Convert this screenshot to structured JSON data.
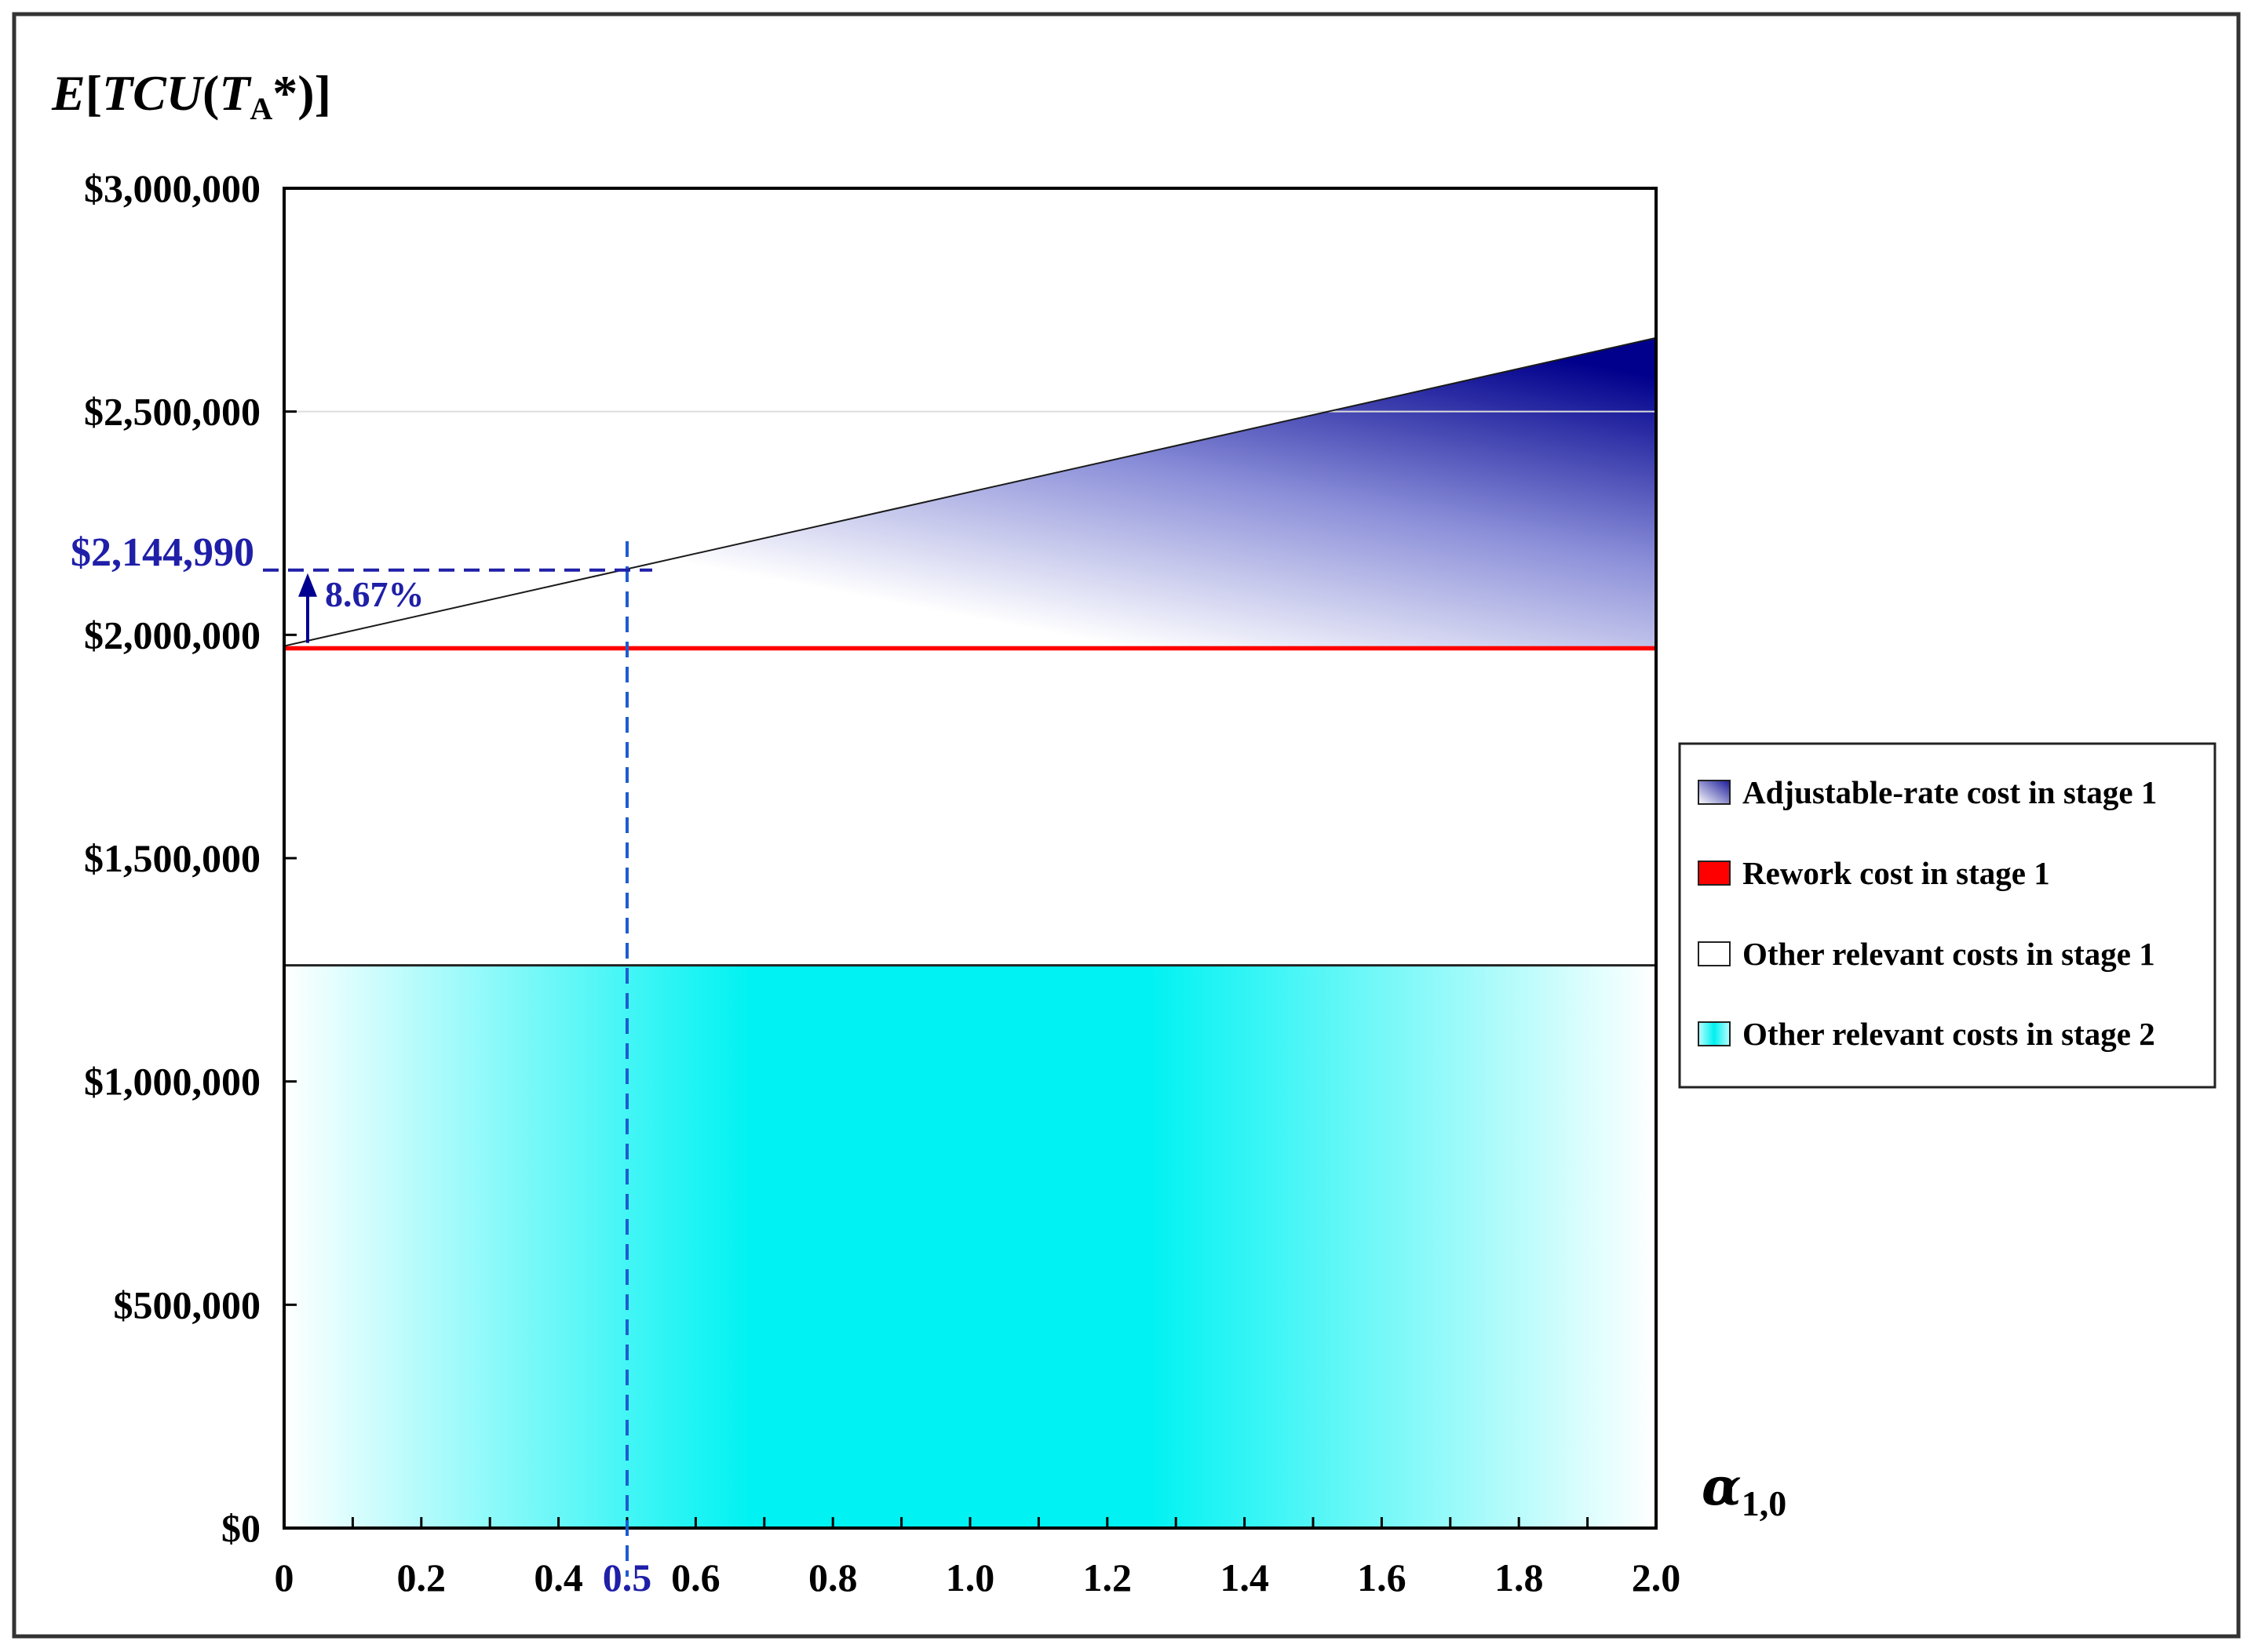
{
  "chart_data": {
    "type": "area",
    "title": "",
    "ylabel": {
      "prefix": "E",
      "open": "[",
      "func": "TCU",
      "paren_open": "(",
      "var": "T",
      "var_sub": "A",
      "star": "*",
      "close": ")]"
    },
    "xlabel": {
      "symbol": "α",
      "sub": "1,0"
    },
    "xlim": [
      0,
      2.0
    ],
    "ylim": [
      0,
      3000000
    ],
    "x_ticks": [
      {
        "value": 0,
        "label": "0"
      },
      {
        "value": 0.2,
        "label": "0.2"
      },
      {
        "value": 0.4,
        "label": "0.4"
      },
      {
        "value": 0.6,
        "label": "0.6"
      },
      {
        "value": 0.8,
        "label": "0.8"
      },
      {
        "value": 1.0,
        "label": "1.0"
      },
      {
        "value": 1.2,
        "label": "1.2"
      },
      {
        "value": 1.4,
        "label": "1.4"
      },
      {
        "value": 1.6,
        "label": "1.6"
      },
      {
        "value": 1.8,
        "label": "1.8"
      },
      {
        "value": 2.0,
        "label": "2.0"
      }
    ],
    "y_ticks": [
      {
        "value": 0,
        "label": "$0"
      },
      {
        "value": 500000,
        "label": "$500,000"
      },
      {
        "value": 1000000,
        "label": "$1,000,000"
      },
      {
        "value": 1500000,
        "label": "$1,500,000"
      },
      {
        "value": 2000000,
        "label": "$2,000,000"
      },
      {
        "value": 2500000,
        "label": "$2,500,000"
      },
      {
        "value": 3000000,
        "label": "$3,000,000"
      }
    ],
    "series": [
      {
        "name": "Other relevant costs in stage 2",
        "x": [
          0,
          2.0
        ],
        "lower": [
          0,
          0
        ],
        "upper": [
          1260000,
          1260000
        ]
      },
      {
        "name": "Other relevant costs in stage 1",
        "x": [
          0,
          2.0
        ],
        "lower": [
          1260000,
          1260000
        ],
        "upper": [
          1970000,
          1970000
        ]
      },
      {
        "name": "Rework cost in stage 1",
        "x": [
          0,
          2.0
        ],
        "lower": [
          1965000,
          1965000
        ],
        "upper": [
          1975000,
          1975000
        ]
      },
      {
        "name": "Adjustable-rate cost in stage 1",
        "x": [
          0,
          2.0
        ],
        "lower": [
          1975000,
          1975000
        ],
        "upper": [
          1975000,
          2665000
        ]
      }
    ],
    "annotation": {
      "x": 0.5,
      "x_label": "0.5",
      "y": 2144990,
      "y_label": "$2,144,990",
      "pct_label": "8.67%",
      "base_y": 1975000
    },
    "legend": {
      "placement": "right",
      "items": [
        {
          "label": "Adjustable-rate cost in stage 1",
          "swatch": "blue-gradient"
        },
        {
          "label": "Rework cost in stage 1",
          "swatch": "red"
        },
        {
          "label": "Other relevant costs in stage 1",
          "swatch": "white"
        },
        {
          "label": "Other relevant costs in stage 2",
          "swatch": "cyan"
        }
      ]
    },
    "grid": false
  },
  "colors": {
    "annotation": "#1f1fa8",
    "navy": "#000090",
    "red": "#ff0000",
    "cyan": "#00f0f0",
    "dashed_guide": "#1e5ccf"
  }
}
